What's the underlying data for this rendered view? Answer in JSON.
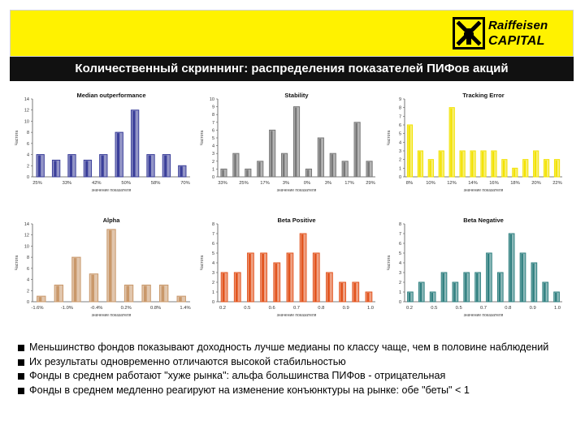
{
  "brand": {
    "line1": "Raiffeisen",
    "line2": "CAPITAL"
  },
  "slide_title": "Количественный скриннинг: распределения показателей ПИФов акций",
  "bullets": [
    "Меньшинство фондов показывают доходность лучше медианы по классу чаще, чем в половине наблюдений",
    "Их результаты одновременно отличаются высокой стабильностью",
    "Фонды в среднем работают \"хуже рынка\": альфа большинства ПИФов - отрицательная",
    "Фонды в среднем медленно реагируют на изменение конъюнктуры на рынке: обе \"беты\" < 1"
  ],
  "colors": {
    "header": "#fff200",
    "titlebar": "#111111"
  },
  "chart_data": [
    {
      "type": "bar",
      "title": "Median outperformance",
      "xlabel": "значение показателя",
      "ylabel": "Частота",
      "ylim": [
        0,
        14
      ],
      "yticks": [
        0,
        2,
        4,
        6,
        8,
        10,
        12,
        14
      ],
      "values": [
        4,
        3,
        4,
        3,
        4,
        8,
        12,
        4,
        4,
        2
      ],
      "x_tick_labels": [
        "25%",
        "33%",
        "42%",
        "50%",
        "58%",
        "70%"
      ],
      "color": "#3b3f9a"
    },
    {
      "type": "bar",
      "title": "Stability",
      "xlabel": "значение показателя",
      "ylabel": "Частота",
      "ylim": [
        0,
        10
      ],
      "yticks": [
        0,
        1,
        2,
        3,
        4,
        5,
        6,
        7,
        8,
        9,
        10
      ],
      "values": [
        1,
        3,
        1,
        2,
        6,
        3,
        9,
        1,
        5,
        3,
        2,
        7,
        2
      ],
      "x_tick_labels": [
        "33%",
        "25%",
        "17%",
        "3%",
        "0%",
        "3%",
        "17%",
        "29%"
      ],
      "color": "#777777"
    },
    {
      "type": "bar",
      "title": "Tracking Error",
      "xlabel": "значение показателя",
      "ylabel": "Частота",
      "ylim": [
        0,
        9
      ],
      "yticks": [
        0,
        1,
        2,
        3,
        4,
        5,
        6,
        7,
        8,
        9
      ],
      "values": [
        6,
        3,
        2,
        3,
        8,
        3,
        3,
        3,
        3,
        2,
        1,
        2,
        3,
        2,
        2
      ],
      "x_tick_labels": [
        "8%",
        "10%",
        "12%",
        "14%",
        "16%",
        "18%",
        "20%",
        "22%"
      ],
      "color": "#f2e200"
    },
    {
      "type": "bar",
      "title": "Alpha",
      "xlabel": "значение показателя",
      "ylabel": "Частота",
      "ylim": [
        0,
        14
      ],
      "yticks": [
        0,
        2,
        4,
        6,
        8,
        10,
        12,
        14
      ],
      "values": [
        1,
        3,
        8,
        5,
        13,
        3,
        3,
        3,
        1
      ],
      "x_tick_labels": [
        "-1.6%",
        "-1.0%",
        "-0.4%",
        "0.2%",
        "0.8%",
        "1.4%"
      ],
      "color": "#c9986a"
    },
    {
      "type": "bar",
      "title": "Beta Positive",
      "xlabel": "значение показателя",
      "ylabel": "Частота",
      "ylim": [
        0,
        8
      ],
      "yticks": [
        0,
        1,
        2,
        3,
        4,
        5,
        6,
        7,
        8
      ],
      "values": [
        3,
        3,
        5,
        5,
        4,
        5,
        7,
        5,
        3,
        2,
        2,
        1
      ],
      "x_tick_labels": [
        "0.2",
        "0.5",
        "0.6",
        "0.7",
        "0.8",
        "0.9",
        "1.0"
      ],
      "color": "#e2541e"
    },
    {
      "type": "bar",
      "title": "Beta Negative",
      "xlabel": "значение показателя",
      "ylabel": "Частота",
      "ylim": [
        0,
        8
      ],
      "yticks": [
        0,
        1,
        2,
        3,
        4,
        5,
        6,
        7,
        8
      ],
      "values": [
        1,
        2,
        1,
        3,
        2,
        3,
        3,
        5,
        3,
        7,
        5,
        4,
        2,
        1
      ],
      "x_tick_labels": [
        "0.2",
        "0.5",
        "0.5",
        "0.7",
        "0.8",
        "0.9",
        "1.0"
      ],
      "color": "#2e7f7f"
    }
  ]
}
